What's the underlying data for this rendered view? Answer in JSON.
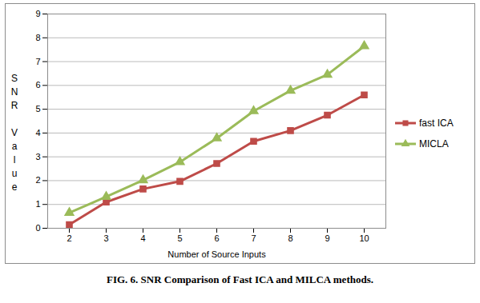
{
  "chart_data": {
    "type": "line",
    "title": "FIG. 6. SNR Comparison of Fast ICA and MILCA methods.",
    "x_label": "Number of Source Inputs",
    "y_label": "SNR Value",
    "categories": [
      "2",
      "3",
      "4",
      "5",
      "6",
      "7",
      "8",
      "9",
      "10"
    ],
    "series": [
      {
        "name": "fast ICA",
        "color": "#be4b48",
        "marker": "square",
        "values": [
          0.15,
          1.1,
          1.65,
          1.97,
          2.72,
          3.65,
          4.1,
          4.75,
          5.6
        ]
      },
      {
        "name": "MICLA",
        "color": "#9bbb59",
        "marker": "triangle",
        "values": [
          0.65,
          1.32,
          2.02,
          2.78,
          3.78,
          4.92,
          5.78,
          6.45,
          7.65
        ]
      }
    ],
    "ylim": [
      0,
      9
    ],
    "yticks": [
      0,
      1,
      2,
      3,
      4,
      5,
      6,
      7,
      8,
      9
    ],
    "grid": true,
    "legend": "right"
  }
}
